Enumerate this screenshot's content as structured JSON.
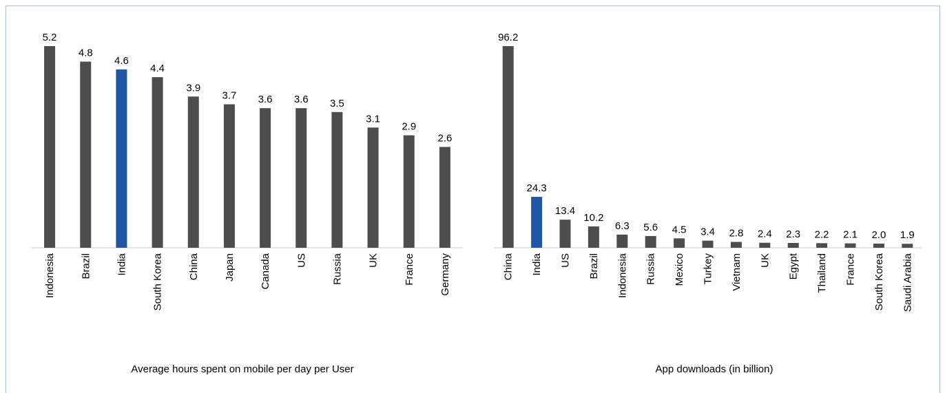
{
  "chart_data": [
    {
      "type": "bar",
      "title": "Average hours spent on mobile per day per User",
      "categories": [
        "Indonesia",
        "Brazil",
        "India",
        "South Korea",
        "China",
        "Japan",
        "Canada",
        "US",
        "Russia",
        "UK",
        "France",
        "Germany"
      ],
      "values": [
        5.2,
        4.8,
        4.6,
        4.4,
        3.9,
        3.7,
        3.6,
        3.6,
        3.5,
        3.1,
        2.9,
        2.6
      ],
      "colors": [
        "#4d4d4d",
        "#4d4d4d",
        "#1f56a5",
        "#4d4d4d",
        "#4d4d4d",
        "#4d4d4d",
        "#4d4d4d",
        "#4d4d4d",
        "#4d4d4d",
        "#4d4d4d",
        "#4d4d4d",
        "#4d4d4d"
      ],
      "ylim": [
        0,
        5.2
      ]
    },
    {
      "type": "bar",
      "title": "App downloads (in billion)",
      "categories": [
        "China",
        "India",
        "US",
        "Brazil",
        "Indonesia",
        "Russia",
        "Mexico",
        "Turkey",
        "Vietnam",
        "UK",
        "Egypt",
        "Thailand",
        "France",
        "South Korea",
        "Saudi Arabia"
      ],
      "values": [
        96.2,
        24.3,
        13.4,
        10.2,
        6.3,
        5.6,
        4.5,
        3.4,
        2.8,
        2.4,
        2.3,
        2.2,
        2.1,
        2.0,
        1.9
      ],
      "value_labels": [
        "96.2",
        "24.3",
        "13.4",
        "10.2",
        "6.3",
        "5.6",
        "4.5",
        "3.4",
        "2.8",
        "2.4",
        "2.3",
        "2.2",
        "2.1",
        "2.0",
        "1.9"
      ],
      "colors": [
        "#4d4d4d",
        "#1f56a5",
        "#4d4d4d",
        "#4d4d4d",
        "#4d4d4d",
        "#4d4d4d",
        "#4d4d4d",
        "#4d4d4d",
        "#4d4d4d",
        "#4d4d4d",
        "#4d4d4d",
        "#4d4d4d",
        "#4d4d4d",
        "#4d4d4d",
        "#4d4d4d"
      ],
      "ylim": [
        0,
        96.2
      ]
    }
  ]
}
